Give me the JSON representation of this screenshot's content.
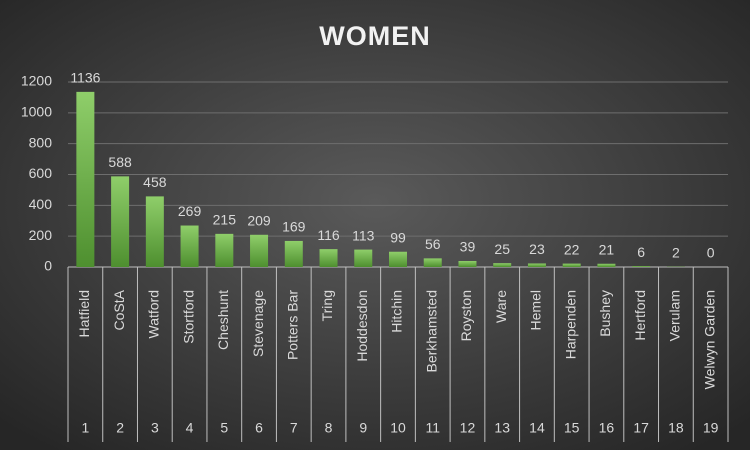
{
  "chart_data": {
    "type": "bar",
    "title": "WOMEN",
    "categories": [
      "Hatfield",
      "CoStA",
      "Watford",
      "Stortford",
      "Cheshunt",
      "Stevenage",
      "Potters Bar",
      "Tring",
      "Hoddesdon",
      "Hitchin",
      "Berkhamsted",
      "Royston",
      "Ware",
      "Hemel",
      "Harpenden",
      "Bushey",
      "Hertford",
      "Verulam",
      "Welwyn Garden"
    ],
    "category_numbers": [
      1,
      2,
      3,
      4,
      5,
      6,
      7,
      8,
      9,
      10,
      11,
      12,
      13,
      14,
      15,
      16,
      17,
      18,
      19
    ],
    "values": [
      1136,
      588,
      458,
      269,
      215,
      209,
      169,
      116,
      113,
      99,
      56,
      39,
      25,
      23,
      22,
      21,
      6,
      2,
      0
    ],
    "color": "#6aa84f",
    "ylim": [
      0,
      1200
    ],
    "yticks": [
      0,
      200,
      400,
      600,
      800,
      1000,
      1200
    ],
    "grid": true
  }
}
